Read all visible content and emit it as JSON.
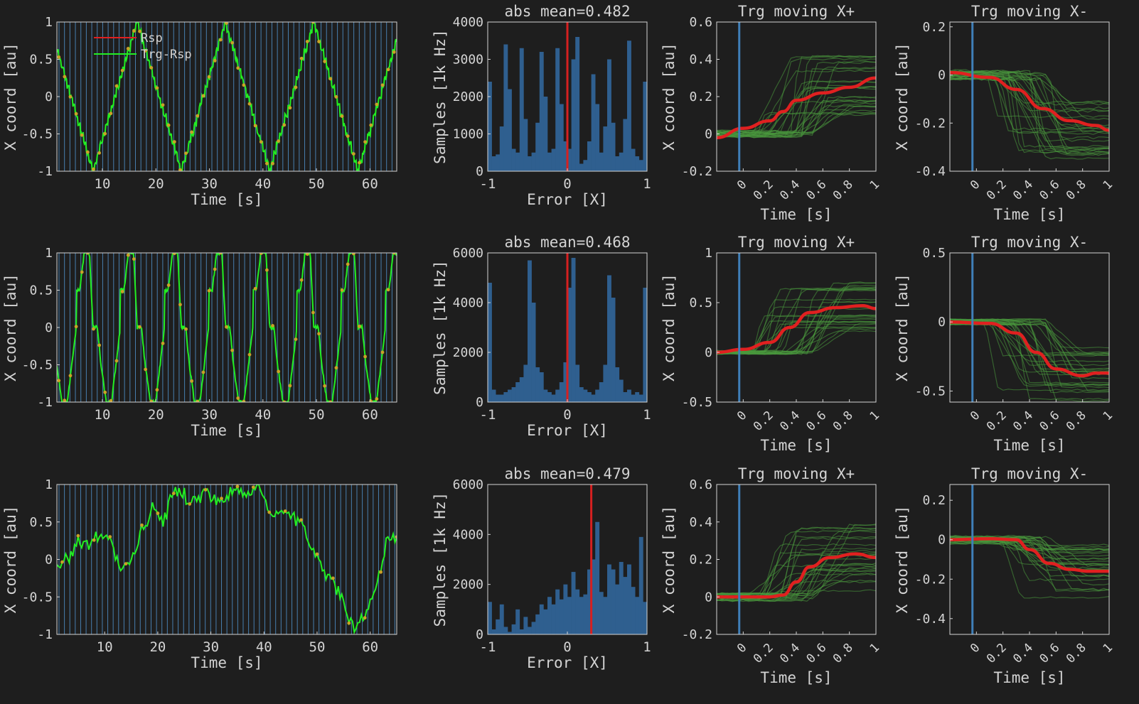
{
  "chart_data": [
    {
      "type": "line",
      "row": 0,
      "col": 0,
      "xlabel": "Time [s]",
      "ylabel": "X coord [au]",
      "xlim": [
        1.5,
        65
      ],
      "ylim": [
        -1,
        1
      ],
      "xticks": [
        10,
        20,
        30,
        40,
        50,
        60
      ],
      "yticks": [
        -1,
        -0.5,
        0,
        0.5,
        1
      ],
      "ytick_labels": [
        "-1",
        "-0.5",
        "0",
        "0.5",
        "1"
      ],
      "legend": {
        "placement": "top-left",
        "entries": [
          {
            "label": "Rsp",
            "color": "#e02020"
          },
          {
            "label": "Trg-Rsp",
            "color": "#22ee22"
          }
        ]
      },
      "series": [
        {
          "name": "Trg-Rsp",
          "color": "#22ee22",
          "pattern": "triangle",
          "period": 16.5,
          "phase": 0.5
        }
      ],
      "markers": "dots",
      "event_lines": "dense"
    },
    {
      "type": "bar",
      "row": 0,
      "col": 1,
      "title": "abs mean=0.482",
      "xlabel": "Error [X]",
      "ylabel": "Samples [1k Hz]",
      "xlim": [
        -1,
        1
      ],
      "ylim": [
        0,
        4000
      ],
      "xticks": [
        -1,
        0,
        1
      ],
      "yticks": [
        0,
        1000,
        2000,
        3000,
        4000
      ],
      "marker_x": 0,
      "values": [
        2400,
        400,
        450,
        1200,
        3400,
        2200,
        600,
        500,
        3300,
        1400,
        400,
        500,
        1300,
        3200,
        2000,
        500,
        600,
        3300,
        1800,
        800,
        600,
        3000,
        3600,
        200,
        300,
        800,
        2600,
        1800,
        500,
        1200,
        3000,
        1300,
        400,
        500,
        1400,
        3500,
        600,
        400,
        300,
        2400
      ]
    },
    {
      "type": "line",
      "row": 0,
      "col": 2,
      "title": "Trg moving X+",
      "xlabel": "Time [s]",
      "ylabel": "X coord [au]",
      "xlim": [
        -0.2,
        1
      ],
      "ylim": [
        -0.2,
        0.6
      ],
      "xticks": [
        0,
        0.2,
        0.4,
        0.6,
        0.8,
        1
      ],
      "yticks": [
        -0.2,
        0,
        0.2,
        0.4,
        0.6
      ],
      "ytick_labels": [
        "-0.2",
        "0",
        "0.2",
        "0.4",
        "0.6"
      ],
      "vline_x": -0.03,
      "mean": {
        "color": "#e02020",
        "points": [
          [
            -0.2,
            -0.02
          ],
          [
            0,
            0.03
          ],
          [
            0.2,
            0.07
          ],
          [
            0.3,
            0.12
          ],
          [
            0.4,
            0.18
          ],
          [
            0.6,
            0.22
          ],
          [
            0.8,
            0.25
          ],
          [
            1,
            0.3
          ]
        ]
      },
      "trials": {
        "count": 28,
        "start": 0.0,
        "end": 0.27,
        "spread": 0.17
      }
    },
    {
      "type": "line",
      "row": 0,
      "col": 3,
      "title": "Trg moving X-",
      "xlabel": "Time [s]",
      "ylabel": "X coord [au]",
      "xlim": [
        -0.2,
        1
      ],
      "ylim": [
        -0.4,
        0.22
      ],
      "xticks": [
        0,
        0.2,
        0.4,
        0.6,
        0.8,
        1
      ],
      "yticks": [
        -0.4,
        -0.2,
        0,
        0.2
      ],
      "ytick_labels": [
        "-0.4",
        "-0.2",
        "0",
        "0.2"
      ],
      "vline_x": -0.03,
      "mean": {
        "color": "#e02020",
        "points": [
          [
            -0.2,
            0.01
          ],
          [
            0.1,
            -0.01
          ],
          [
            0.3,
            -0.06
          ],
          [
            0.5,
            -0.14
          ],
          [
            0.7,
            -0.19
          ],
          [
            0.9,
            -0.21
          ],
          [
            1,
            -0.23
          ]
        ]
      },
      "trials": {
        "count": 28,
        "start": 0.0,
        "end": -0.23,
        "spread": 0.12
      }
    },
    {
      "type": "line",
      "row": 1,
      "col": 0,
      "xlabel": "Time [s]",
      "ylabel": "X coord [au]",
      "xlim": [
        1.5,
        65
      ],
      "ylim": [
        -1,
        1
      ],
      "xticks": [
        10,
        20,
        30,
        40,
        50,
        60
      ],
      "yticks": [
        -1,
        -0.5,
        0,
        0.5,
        1
      ],
      "ytick_labels": [
        "-1",
        "-0.5",
        "0",
        "0.5",
        "1"
      ],
      "series": [
        {
          "name": "Trg-Rsp",
          "color": "#22ee22",
          "pattern": "square",
          "period": 8.25,
          "phase": 0.2
        }
      ],
      "markers": "dots",
      "event_lines": "dense"
    },
    {
      "type": "bar",
      "row": 1,
      "col": 1,
      "title": "abs mean=0.468",
      "xlabel": "Error [X]",
      "ylabel": "Samples [1k Hz]",
      "xlim": [
        -1,
        1
      ],
      "ylim": [
        0,
        6000
      ],
      "xticks": [
        -1,
        0,
        1
      ],
      "yticks": [
        0,
        2000,
        4000,
        6000
      ],
      "marker_x": 0,
      "values": [
        4800,
        500,
        300,
        300,
        400,
        500,
        600,
        800,
        1000,
        1500,
        5700,
        4000,
        1400,
        1200,
        500,
        400,
        300,
        500,
        800,
        1600,
        4600,
        5800,
        1500,
        600,
        500,
        400,
        300,
        500,
        800,
        1500,
        5100,
        4200,
        1400,
        900,
        400,
        500,
        300,
        400,
        300,
        4600
      ]
    },
    {
      "type": "line",
      "row": 1,
      "col": 2,
      "title": "Trg moving X+",
      "xlabel": "Time [s]",
      "ylabel": "X coord [au]",
      "xlim": [
        -0.2,
        1
      ],
      "ylim": [
        -0.5,
        1
      ],
      "xticks": [
        0,
        0.2,
        0.4,
        0.6,
        0.8,
        1
      ],
      "yticks": [
        -0.5,
        0,
        0.5,
        1
      ],
      "ytick_labels": [
        "-0.5",
        "0",
        "0.5",
        "1"
      ],
      "vline_x": -0.03,
      "mean": {
        "color": "#e02020",
        "points": [
          [
            -0.2,
            0
          ],
          [
            0,
            0.03
          ],
          [
            0.2,
            0.1
          ],
          [
            0.35,
            0.25
          ],
          [
            0.5,
            0.4
          ],
          [
            0.7,
            0.45
          ],
          [
            0.9,
            0.47
          ],
          [
            1,
            0.44
          ]
        ]
      },
      "trials": {
        "count": 28,
        "start": 0.0,
        "end": 0.46,
        "spread": 0.25
      }
    },
    {
      "type": "line",
      "row": 1,
      "col": 3,
      "title": "Trg moving X-",
      "xlabel": "Time [s]",
      "ylabel": "X coord [au]",
      "xlim": [
        -0.2,
        1
      ],
      "ylim": [
        -0.58,
        0.5
      ],
      "xticks": [
        0,
        0.2,
        0.4,
        0.6,
        0.8,
        1
      ],
      "yticks": [
        -0.5,
        0,
        0.5
      ],
      "ytick_labels": [
        "-0.5",
        "0",
        "0.5"
      ],
      "vline_x": -0.03,
      "mean": {
        "color": "#e02020",
        "points": [
          [
            -0.2,
            0
          ],
          [
            0.1,
            -0.01
          ],
          [
            0.3,
            -0.08
          ],
          [
            0.45,
            -0.22
          ],
          [
            0.6,
            -0.34
          ],
          [
            0.8,
            -0.39
          ],
          [
            0.9,
            -0.37
          ],
          [
            1,
            -0.37
          ]
        ]
      },
      "trials": {
        "count": 28,
        "start": 0.0,
        "end": -0.38,
        "spread": 0.2
      }
    },
    {
      "type": "line",
      "row": 2,
      "col": 0,
      "xlabel": "Time [s]",
      "ylabel": "X coord [au]",
      "xlim": [
        1,
        65
      ],
      "ylim": [
        -1,
        1
      ],
      "xticks": [
        10,
        20,
        30,
        40,
        50,
        60
      ],
      "yticks": [
        -1,
        -0.5,
        0,
        0.5,
        1
      ],
      "ytick_labels": [
        "-1",
        "-0.5",
        "0",
        "0.5",
        "1"
      ],
      "series": [
        {
          "name": "Trg-Rsp",
          "color": "#22ee22",
          "pattern": "drift",
          "points": [
            [
              1,
              -0.1
            ],
            [
              3,
              0
            ],
            [
              5,
              0.25
            ],
            [
              7,
              0.2
            ],
            [
              9,
              0.3
            ],
            [
              11,
              0.25
            ],
            [
              13,
              -0.15
            ],
            [
              15,
              0.0
            ],
            [
              17,
              0.35
            ],
            [
              19,
              0.7
            ],
            [
              21,
              0.5
            ],
            [
              23,
              0.9
            ],
            [
              25,
              0.85
            ],
            [
              27,
              0.75
            ],
            [
              29,
              0.9
            ],
            [
              31,
              0.75
            ],
            [
              33,
              0.8
            ],
            [
              35,
              0.95
            ],
            [
              37,
              0.9
            ],
            [
              39,
              1.0
            ],
            [
              41,
              0.65
            ],
            [
              43,
              0.55
            ],
            [
              45,
              0.6
            ],
            [
              47,
              0.45
            ],
            [
              49,
              0.2
            ],
            [
              51,
              -0.1
            ],
            [
              53,
              -0.3
            ],
            [
              55,
              -0.6
            ],
            [
              57,
              -0.95
            ],
            [
              59,
              -0.8
            ],
            [
              61,
              -0.4
            ],
            [
              63,
              0.25
            ],
            [
              65,
              0.3
            ]
          ]
        }
      ],
      "markers": "dots",
      "event_lines": "dense"
    },
    {
      "type": "bar",
      "row": 2,
      "col": 1,
      "title": "abs mean=0.479",
      "xlabel": "Error [X]",
      "ylabel": "Samples [1k Hz]",
      "xlim": [
        -1,
        1
      ],
      "ylim": [
        0,
        6000
      ],
      "xticks": [
        -1,
        0,
        1
      ],
      "yticks": [
        0,
        2000,
        4000,
        6000
      ],
      "marker_x": 0.3,
      "values": [
        1300,
        200,
        600,
        1200,
        300,
        100,
        400,
        1000,
        200,
        700,
        300,
        500,
        800,
        1200,
        1000,
        1500,
        1200,
        1800,
        1400,
        2000,
        1500,
        2500,
        1800,
        1500,
        1600,
        2600,
        3000,
        4500,
        1700,
        1500,
        2800,
        2600,
        2000,
        2900,
        2300,
        2800,
        1900,
        1500,
        3900,
        1300
      ]
    },
    {
      "type": "line",
      "row": 2,
      "col": 2,
      "title": "Trg moving X+",
      "xlabel": "Time [s]",
      "ylabel": "X coord [au]",
      "xlim": [
        -0.2,
        1
      ],
      "ylim": [
        -0.2,
        0.6
      ],
      "xticks": [
        0,
        0.2,
        0.4,
        0.6,
        0.8,
        1
      ],
      "yticks": [
        -0.2,
        0,
        0.2,
        0.4,
        0.6
      ],
      "ytick_labels": [
        "-0.2",
        "0",
        "0.2",
        "0.4",
        "0.6"
      ],
      "vline_x": -0.03,
      "mean": {
        "color": "#e02020",
        "points": [
          [
            -0.2,
            0
          ],
          [
            0.2,
            0
          ],
          [
            0.3,
            0.01
          ],
          [
            0.4,
            0.08
          ],
          [
            0.5,
            0.16
          ],
          [
            0.65,
            0.21
          ],
          [
            0.85,
            0.23
          ],
          [
            1,
            0.21
          ]
        ]
      },
      "trials": {
        "count": 28,
        "start": 0.0,
        "end": 0.21,
        "spread": 0.18
      }
    },
    {
      "type": "line",
      "row": 2,
      "col": 3,
      "title": "Trg moving X-",
      "xlabel": "Time [s]",
      "ylabel": "X coord [au]",
      "xlim": [
        -0.2,
        1
      ],
      "ylim": [
        -0.48,
        0.28
      ],
      "xticks": [
        0,
        0.2,
        0.4,
        0.6,
        0.8,
        1
      ],
      "yticks": [
        -0.4,
        -0.2,
        0,
        0.2
      ],
      "ytick_labels": [
        "-0.4",
        "-0.2",
        "0",
        "0.2"
      ],
      "vline_x": -0.03,
      "mean": {
        "color": "#e02020",
        "points": [
          [
            -0.2,
            0
          ],
          [
            0.1,
            0.005
          ],
          [
            0.3,
            0
          ],
          [
            0.4,
            -0.05
          ],
          [
            0.55,
            -0.12
          ],
          [
            0.7,
            -0.15
          ],
          [
            0.85,
            -0.16
          ],
          [
            1,
            -0.16
          ]
        ]
      },
      "trials": {
        "count": 28,
        "start": 0.0,
        "end": -0.16,
        "spread": 0.14
      }
    }
  ]
}
